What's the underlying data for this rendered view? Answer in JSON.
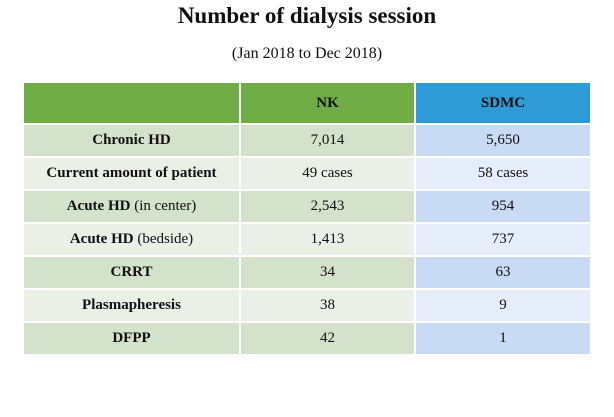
{
  "title": "Number of dialysis session",
  "subtitle": "(Jan 2018 to Dec 2018)",
  "table": {
    "columns": [
      "",
      "NK",
      "SDMC"
    ],
    "rows": [
      {
        "label": "Chronic HD",
        "suffix": "",
        "nk": "7,014",
        "sdmc": "5,650"
      },
      {
        "label": "Current amount of patient",
        "suffix": "",
        "nk": "49 cases",
        "sdmc": "58 cases"
      },
      {
        "label": "Acute HD",
        "suffix": " (in center)",
        "nk": "2,543",
        "sdmc": "954"
      },
      {
        "label": "Acute HD",
        "suffix": " (bedside)",
        "nk": "1,413",
        "sdmc": "737"
      },
      {
        "label": "CRRT",
        "suffix": "",
        "nk": "34",
        "sdmc": "63"
      },
      {
        "label": "Plasmapheresis",
        "suffix": "",
        "nk": "38",
        "sdmc": "9"
      },
      {
        "label": "DFPP",
        "suffix": "",
        "nk": "42",
        "sdmc": "1"
      }
    ]
  },
  "colors": {
    "nk_header": "#70ad47",
    "sdmc_header": "#2e9bd6"
  }
}
